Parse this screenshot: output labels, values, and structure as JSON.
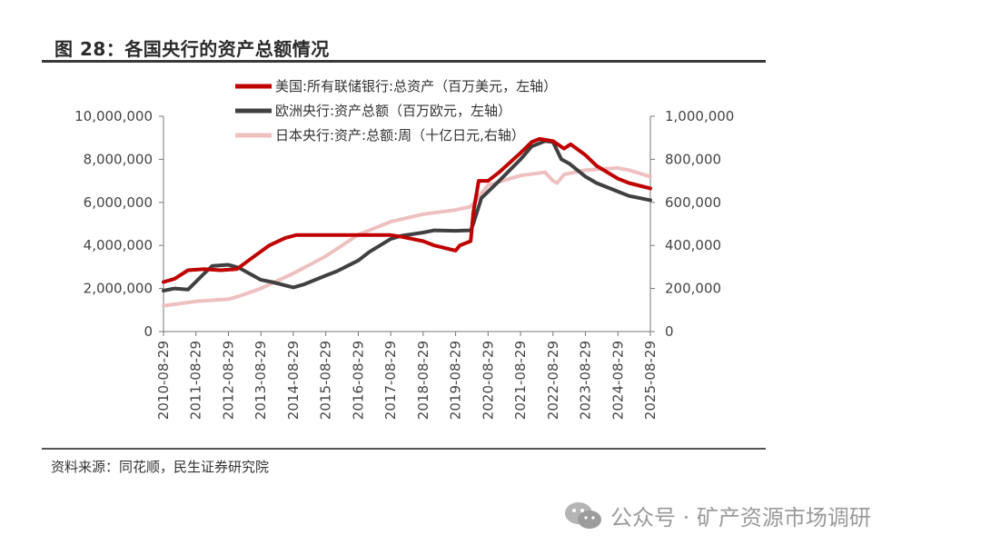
{
  "figure": {
    "title": "图 28：各国央行的资产总额情况",
    "source": "资料来源：同花顺，民生证券研究院",
    "watermark": "公众号 · 矿产资源市场调研"
  },
  "chart_data": {
    "type": "line",
    "x_tick_labels": [
      "2010-08-29",
      "2011-08-29",
      "2012-08-29",
      "2013-08-29",
      "2014-08-29",
      "2015-08-29",
      "2016-08-29",
      "2017-08-29",
      "2018-08-29",
      "2019-08-29",
      "2020-08-29",
      "2021-08-29",
      "2022-08-29",
      "2023-08-29",
      "2024-08-29",
      "2025-08-29"
    ],
    "y_left": {
      "ticks": [
        0,
        2000000,
        4000000,
        6000000,
        8000000,
        10000000
      ],
      "tick_labels": [
        "0",
        "2,000,000",
        "4,000,000",
        "6,000,000",
        "8,000,000",
        "10,000,000"
      ],
      "range": [
        0,
        10000000
      ]
    },
    "y_right": {
      "ticks": [
        0,
        200000,
        400000,
        600000,
        800000,
        1000000
      ],
      "tick_labels": [
        "0",
        "200,000",
        "400,000",
        "600,000",
        "800,000",
        "1,000,000"
      ],
      "range": [
        0,
        1000000
      ]
    },
    "legend_position": "top",
    "grid": false,
    "series": [
      {
        "name": "美国:所有联储银行:总资产（百万美元，左轴）",
        "axis": "left",
        "color": "#c00000",
        "points": [
          [
            "2010-08-29",
            2300000
          ],
          [
            "2011-01-01",
            2450000
          ],
          [
            "2011-06-01",
            2850000
          ],
          [
            "2011-12-01",
            2900000
          ],
          [
            "2012-06-01",
            2850000
          ],
          [
            "2012-12-01",
            2900000
          ],
          [
            "2013-06-01",
            3450000
          ],
          [
            "2013-12-01",
            4000000
          ],
          [
            "2014-06-01",
            4350000
          ],
          [
            "2014-10-01",
            4480000
          ],
          [
            "2015-08-29",
            4480000
          ],
          [
            "2016-08-29",
            4480000
          ],
          [
            "2017-08-29",
            4480000
          ],
          [
            "2018-01-01",
            4400000
          ],
          [
            "2018-08-29",
            4200000
          ],
          [
            "2019-01-01",
            4000000
          ],
          [
            "2019-08-29",
            3760000
          ],
          [
            "2019-10-15",
            4000000
          ],
          [
            "2020-02-15",
            4200000
          ],
          [
            "2020-03-15",
            5500000
          ],
          [
            "2020-05-15",
            7000000
          ],
          [
            "2020-08-29",
            7000000
          ],
          [
            "2021-01-01",
            7400000
          ],
          [
            "2021-08-29",
            8300000
          ],
          [
            "2022-01-01",
            8800000
          ],
          [
            "2022-04-01",
            8950000
          ],
          [
            "2022-08-29",
            8850000
          ],
          [
            "2023-01-01",
            8500000
          ],
          [
            "2023-03-15",
            8700000
          ],
          [
            "2023-08-29",
            8200000
          ],
          [
            "2024-01-01",
            7700000
          ],
          [
            "2024-08-29",
            7100000
          ],
          [
            "2025-01-01",
            6900000
          ],
          [
            "2025-08-29",
            6650000
          ]
        ]
      },
      {
        "name": "欧洲央行:资产总额（百万欧元，左轴）",
        "axis": "left",
        "color": "#404040",
        "points": [
          [
            "2010-08-29",
            1900000
          ],
          [
            "2011-01-01",
            2000000
          ],
          [
            "2011-06-01",
            1950000
          ],
          [
            "2011-12-01",
            2700000
          ],
          [
            "2012-03-01",
            3050000
          ],
          [
            "2012-08-29",
            3100000
          ],
          [
            "2013-01-01",
            2950000
          ],
          [
            "2013-08-29",
            2400000
          ],
          [
            "2014-01-01",
            2300000
          ],
          [
            "2014-08-29",
            2050000
          ],
          [
            "2015-01-01",
            2200000
          ],
          [
            "2015-08-29",
            2600000
          ],
          [
            "2016-01-01",
            2800000
          ],
          [
            "2016-08-29",
            3300000
          ],
          [
            "2017-01-01",
            3700000
          ],
          [
            "2017-08-29",
            4300000
          ],
          [
            "2018-01-01",
            4450000
          ],
          [
            "2018-08-29",
            4600000
          ],
          [
            "2019-01-01",
            4700000
          ],
          [
            "2019-08-29",
            4680000
          ],
          [
            "2020-02-15",
            4700000
          ],
          [
            "2020-03-15",
            5000000
          ],
          [
            "2020-06-15",
            6200000
          ],
          [
            "2020-08-29",
            6500000
          ],
          [
            "2021-01-01",
            7000000
          ],
          [
            "2021-08-29",
            8000000
          ],
          [
            "2022-01-01",
            8600000
          ],
          [
            "2022-06-01",
            8850000
          ],
          [
            "2022-08-29",
            8800000
          ],
          [
            "2022-12-01",
            8000000
          ],
          [
            "2023-03-01",
            7800000
          ],
          [
            "2023-08-29",
            7200000
          ],
          [
            "2024-01-01",
            6900000
          ],
          [
            "2024-08-29",
            6500000
          ],
          [
            "2025-01-01",
            6300000
          ],
          [
            "2025-08-29",
            6100000
          ]
        ]
      },
      {
        "name": "日本央行:资产:总额:周（十亿日元,右轴）",
        "axis": "right",
        "color": "#eec0c0",
        "points": [
          [
            "2010-08-29",
            120000
          ],
          [
            "2011-08-29",
            140000
          ],
          [
            "2012-08-29",
            150000
          ],
          [
            "2013-01-01",
            165000
          ],
          [
            "2013-08-29",
            200000
          ],
          [
            "2014-08-29",
            270000
          ],
          [
            "2015-08-29",
            350000
          ],
          [
            "2016-08-29",
            450000
          ],
          [
            "2017-08-29",
            510000
          ],
          [
            "2018-08-29",
            545000
          ],
          [
            "2019-08-29",
            565000
          ],
          [
            "2020-02-15",
            580000
          ],
          [
            "2020-08-29",
            680000
          ],
          [
            "2021-08-29",
            725000
          ],
          [
            "2022-03-01",
            735000
          ],
          [
            "2022-06-01",
            740000
          ],
          [
            "2022-08-29",
            700000
          ],
          [
            "2022-10-15",
            690000
          ],
          [
            "2023-01-01",
            730000
          ],
          [
            "2023-08-29",
            750000
          ],
          [
            "2024-08-29",
            760000
          ],
          [
            "2025-01-01",
            750000
          ],
          [
            "2025-08-29",
            720000
          ]
        ]
      }
    ]
  }
}
